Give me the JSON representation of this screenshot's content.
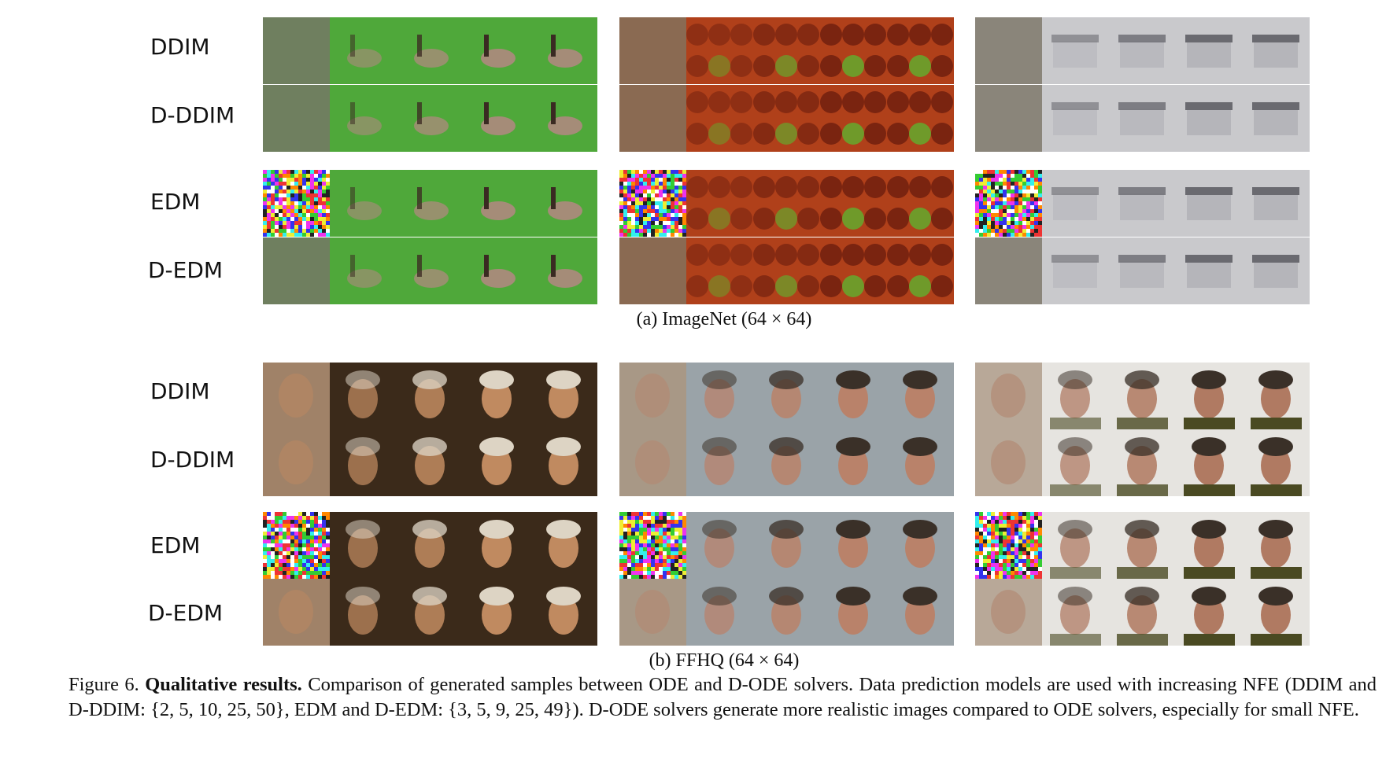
{
  "row_labels": {
    "imagenet": [
      "DDIM",
      "D-DDIM",
      "EDM",
      "D-EDM"
    ],
    "ffhq": [
      "DDIM",
      "D-DDIM",
      "EDM",
      "D-EDM"
    ]
  },
  "panel_captions": {
    "imagenet": "(a) ImageNet (64 × 64)",
    "ffhq": "(b) FFHQ (64 × 64)"
  },
  "figure_caption": {
    "prefix": "Figure 6.",
    "title": "Qualitative results.",
    "body": "Comparison of generated samples between ODE and D-ODE solvers. Data prediction models are used with increasing NFE (DDIM and D-DDIM: {2, 5, 10, 25, 50}, EDM and D-EDM: {3, 5, 9, 25, 49}). D-ODE solvers generate more realistic images compared to ODE solvers, especially for small NFE."
  },
  "sample_groups": {
    "imagenet": [
      {
        "subject": "goose",
        "colors": {
          "bg": "#4fa83a",
          "fg": "#a58c78",
          "blur": "#7a8a6a",
          "noise_base": "#6f7f5f"
        }
      },
      {
        "subject": "chestnuts",
        "colors": {
          "bg": "#b0401a",
          "fg": "#6f9a2a",
          "blur": "#8a6a4a",
          "noise_base": "#8a6a52"
        }
      },
      {
        "subject": "house",
        "colors": {
          "bg": "#c9c9cc",
          "fg": "#6a6a70",
          "blur": "#8f8a80",
          "noise_base": "#8a857a"
        }
      }
    ],
    "ffhq": [
      {
        "subject": "woman-cap",
        "colors": {
          "bg": "#3b2a1a",
          "fg": "#c08a60",
          "blur": "#a07e62",
          "noise_base": "#a08268"
        }
      },
      {
        "subject": "man-outdoor",
        "colors": {
          "bg": "#9aa3a8",
          "fg": "#b9826a",
          "blur": "#a59480",
          "noise_base": "#a89886"
        }
      },
      {
        "subject": "man-suit",
        "colors": {
          "bg": "#e6e4e0",
          "fg": "#b07a62",
          "blur": "#b8a692",
          "noise_base": "#b8a898"
        }
      }
    ]
  }
}
